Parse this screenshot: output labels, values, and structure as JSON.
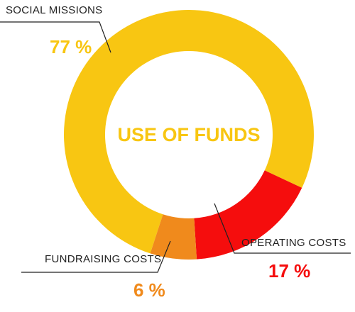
{
  "chart_data": {
    "type": "donut",
    "title": "USE OF FUNDS",
    "categories": [
      "SOCIAL MISSIONS",
      "OPERATING COSTS",
      "FUNDRAISING COSTS"
    ],
    "values": [
      77,
      17,
      6
    ],
    "value_labels": [
      "77 %",
      "17 %",
      "6 %"
    ],
    "colors": [
      "#f8c612",
      "#f50d0d",
      "#f08a1c"
    ]
  }
}
